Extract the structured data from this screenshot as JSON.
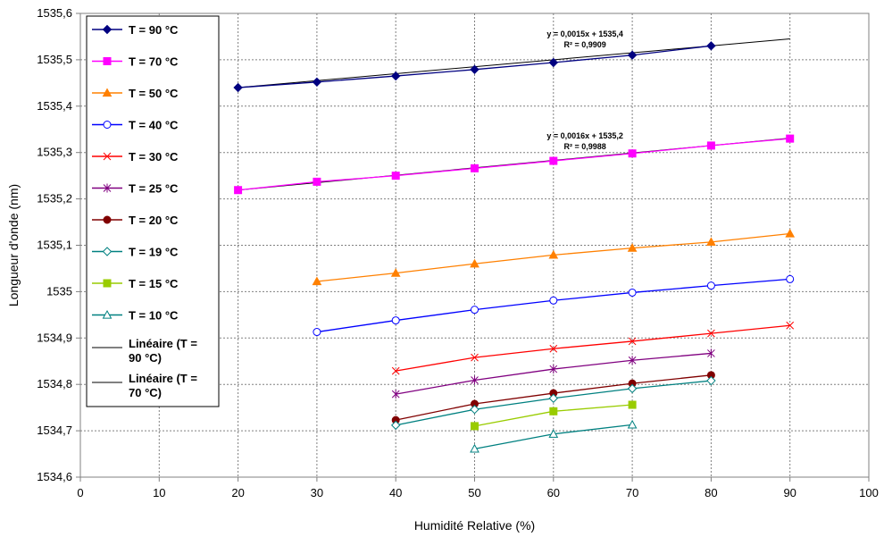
{
  "chart_data": {
    "type": "line",
    "title": "",
    "xlabel": "Humidité Relative (%)",
    "ylabel": "Longueur d'onde (nm)",
    "xlim": [
      0,
      100
    ],
    "ylim": [
      1534.6,
      1535.6
    ],
    "x_ticks": [
      0,
      10,
      20,
      30,
      40,
      50,
      60,
      70,
      80,
      90,
      100
    ],
    "y_ticks": [
      1534.6,
      1534.7,
      1534.8,
      1534.9,
      1535.0,
      1535.1,
      1535.2,
      1535.3,
      1535.4,
      1535.5,
      1535.6
    ],
    "x_tick_labels": [
      "0",
      "10",
      "20",
      "30",
      "40",
      "50",
      "60",
      "70",
      "80",
      "90",
      "100"
    ],
    "y_tick_labels": [
      "1534,6",
      "1534,7",
      "1534,8",
      "1534,9",
      "1535",
      "1535,1",
      "1535,2",
      "1535,3",
      "1535,4",
      "1535,5",
      "1535,6"
    ],
    "grid": true,
    "legend_position": "top-left",
    "series": [
      {
        "name": "T = 90 °C",
        "marker": "diamond",
        "filled": true,
        "color": "#000080",
        "x": [
          20,
          30,
          40,
          50,
          60,
          70,
          80
        ],
        "y": [
          1535.44,
          1535.452,
          1535.465,
          1535.479,
          1535.494,
          1535.51,
          1535.53
        ]
      },
      {
        "name": "T = 70 °C",
        "marker": "square",
        "filled": true,
        "color": "#FF00FF",
        "x": [
          20,
          30,
          40,
          50,
          60,
          70,
          80,
          90
        ],
        "y": [
          1535.219,
          1535.237,
          1535.25,
          1535.266,
          1535.282,
          1535.298,
          1535.315,
          1535.33
        ]
      },
      {
        "name": "T = 50 °C",
        "marker": "triangle",
        "filled": true,
        "color": "#FF8000",
        "x": [
          30,
          40,
          50,
          60,
          70,
          80,
          90
        ],
        "y": [
          1535.022,
          1535.04,
          1535.06,
          1535.079,
          1535.094,
          1535.107,
          1535.125
        ]
      },
      {
        "name": "T = 40 °C",
        "marker": "circle",
        "filled": false,
        "color": "#0000FF",
        "x": [
          30,
          40,
          50,
          60,
          70,
          80,
          90
        ],
        "y": [
          1534.913,
          1534.938,
          1534.961,
          1534.981,
          1534.998,
          1535.013,
          1535.027
        ]
      },
      {
        "name": "T = 30 °C",
        "marker": "x",
        "filled": false,
        "color": "#FF0000",
        "x": [
          40,
          50,
          60,
          70,
          80,
          90
        ],
        "y": [
          1534.829,
          1534.858,
          1534.877,
          1534.893,
          1534.91,
          1534.927
        ]
      },
      {
        "name": "T = 25 °C",
        "marker": "star",
        "filled": false,
        "color": "#800080",
        "x": [
          40,
          50,
          60,
          70,
          80
        ],
        "y": [
          1534.779,
          1534.809,
          1534.833,
          1534.852,
          1534.867
        ]
      },
      {
        "name": "T = 20 °C",
        "marker": "circle",
        "filled": true,
        "color": "#800000",
        "x": [
          40,
          50,
          60,
          70,
          80
        ],
        "y": [
          1534.723,
          1534.758,
          1534.781,
          1534.802,
          1534.82
        ]
      },
      {
        "name": "T = 19 °C",
        "marker": "diamond",
        "filled": false,
        "color": "#008080",
        "x": [
          40,
          50,
          60,
          70,
          80
        ],
        "y": [
          1534.712,
          1534.746,
          1534.77,
          1534.791,
          1534.808
        ]
      },
      {
        "name": "T = 15 °C",
        "marker": "square",
        "filled": true,
        "color": "#99CC00",
        "x": [
          50,
          60,
          70
        ],
        "y": [
          1534.71,
          1534.742,
          1534.756
        ]
      },
      {
        "name": "T = 10 °C",
        "marker": "triangle",
        "filled": false,
        "color": "#008080",
        "x": [
          50,
          60,
          70
        ],
        "y": [
          1534.661,
          1534.693,
          1534.713
        ]
      }
    ],
    "trendlines": [
      {
        "name": "Linéaire (T = 90 °C)",
        "series": "T = 90 °C",
        "slope": 0.0015,
        "intercept": 1535.41,
        "x_range": [
          20,
          90
        ],
        "color": "#000000"
      },
      {
        "name": "Linéaire (T = 70 °C)",
        "series": "T = 70 °C",
        "slope": 0.0016,
        "intercept": 1535.187,
        "x_range": [
          20,
          90
        ],
        "color": "#000000"
      }
    ],
    "annotations": [
      {
        "equation": "y = 0,0015x + 1535,4",
        "r2": "R² = 0,9909",
        "at_x": 64,
        "at_y": 1535.55
      },
      {
        "equation": "y = 0,0016x + 1535,2",
        "r2": "R² = 0,9988",
        "at_x": 64,
        "at_y": 1535.33
      }
    ]
  }
}
